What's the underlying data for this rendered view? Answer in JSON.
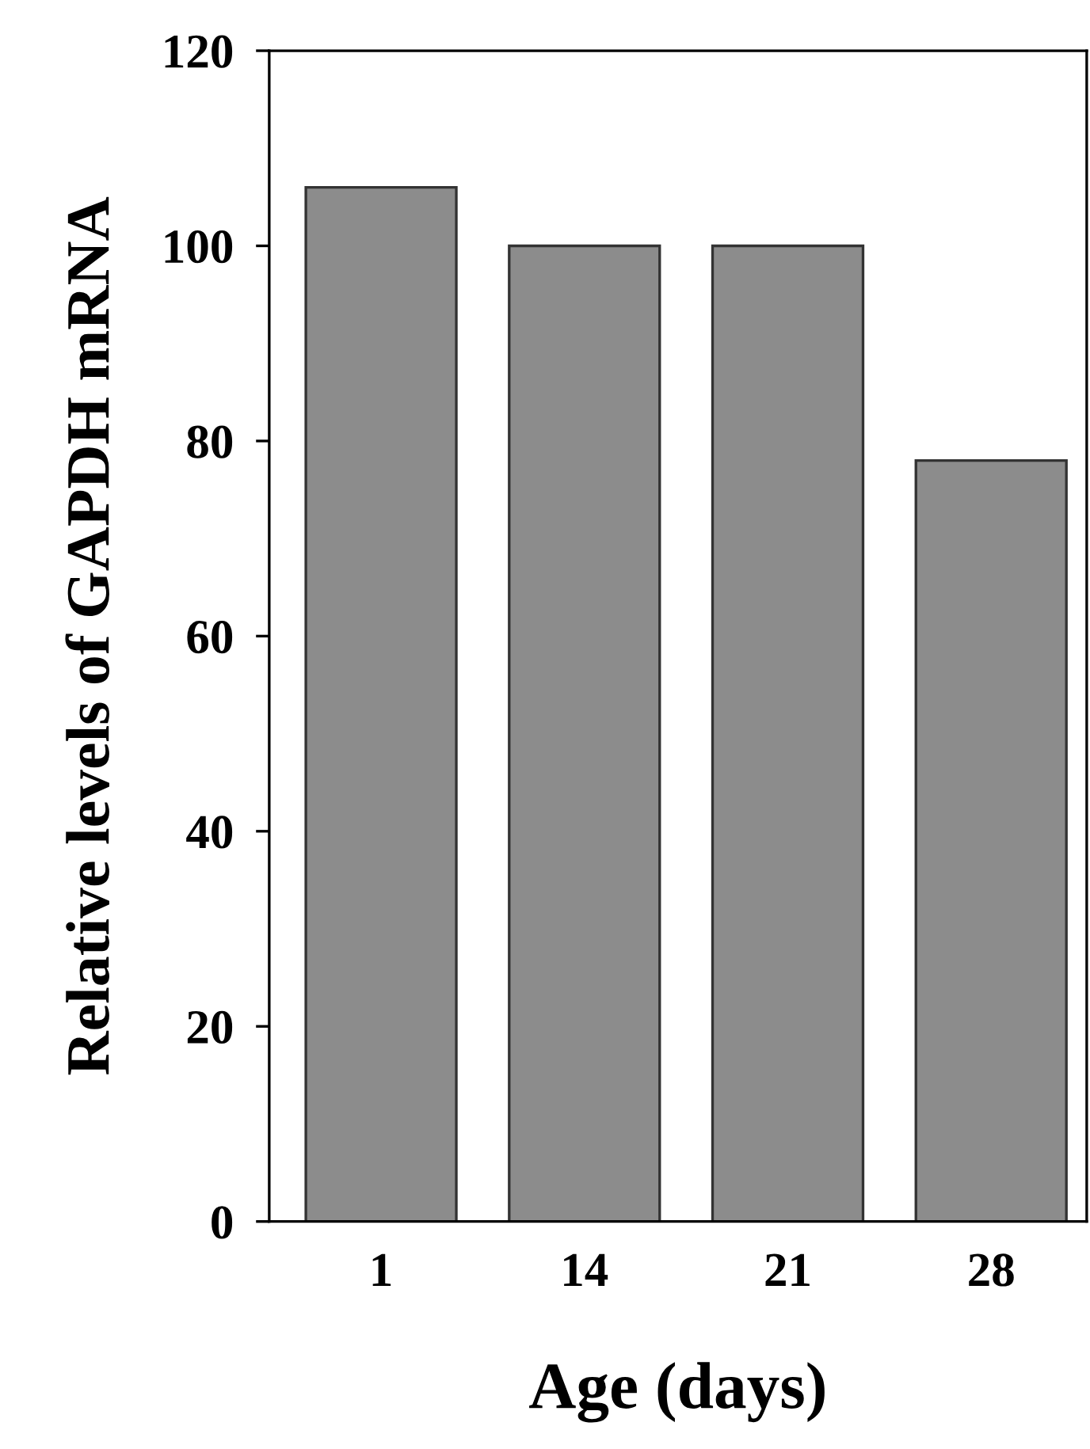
{
  "chart_data": {
    "type": "bar",
    "xlabel": "Age (days)",
    "ylabel": "Relative levels of GAPDH mRNA",
    "categories": [
      "1",
      "14",
      "21",
      "28"
    ],
    "values": [
      106,
      100,
      100,
      78
    ],
    "color": "#8c8c8c",
    "ylim": [
      0,
      120
    ],
    "yticks": [
      0,
      20,
      40,
      60,
      80,
      100,
      120
    ],
    "grid": false,
    "legend": false
  }
}
